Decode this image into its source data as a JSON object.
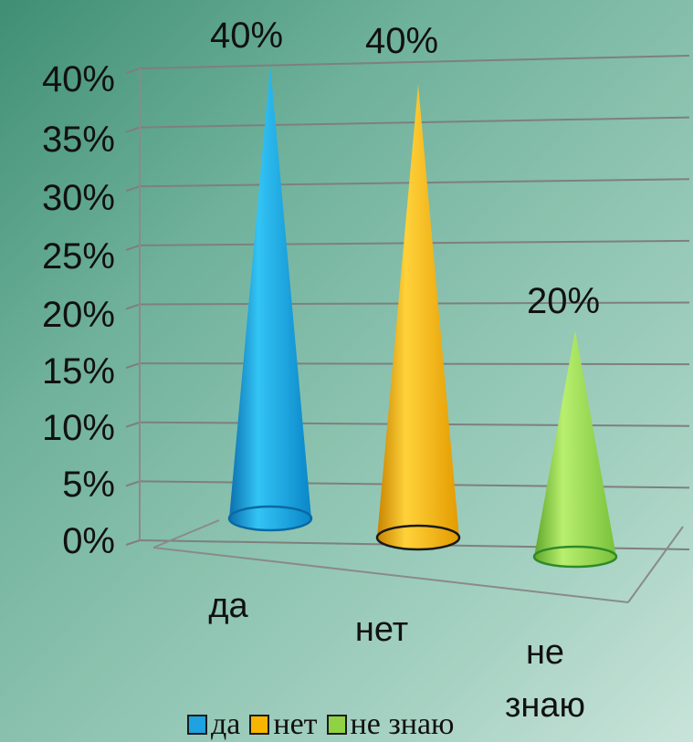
{
  "chart_data": {
    "type": "bar",
    "categories": [
      "да",
      "нет",
      "не знаю"
    ],
    "values": [
      40,
      40,
      20
    ],
    "data_labels": [
      "40%",
      "40%",
      "20%"
    ],
    "y_ticks": [
      "0%",
      "5%",
      "10%",
      "15%",
      "20%",
      "25%",
      "30%",
      "35%",
      "40%"
    ],
    "ylim": [
      0,
      40
    ],
    "title": "",
    "xlabel": "",
    "ylabel": "",
    "grid": true,
    "legend_position": "bottom",
    "colors": [
      "#1ea2e0",
      "#f7b500",
      "#8fd244"
    ],
    "legend": [
      {
        "label": "да",
        "color": "#1ea2e0"
      },
      {
        "label": "нет",
        "color": "#f7b500"
      },
      {
        "label": "не знаю",
        "color": "#8fd244"
      }
    ]
  }
}
